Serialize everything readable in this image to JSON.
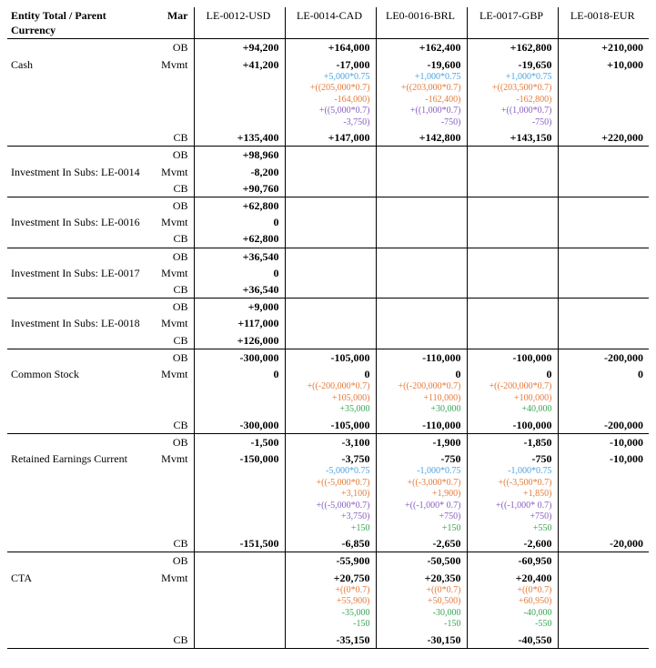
{
  "header": {
    "title": "Entity Total / Parent Currency",
    "subhead": "Mar",
    "columns": [
      "LE-0012-USD",
      "LE-0014-CAD",
      "LE0-0016-BRL",
      "LE-0017-GBP",
      "LE-0018-EUR"
    ]
  },
  "colors": {
    "blue": "#4aa3df",
    "orange": "#e57b3a",
    "purple": "#8a5fc0",
    "green": "#3aa655"
  },
  "groups": [
    {
      "label": "Cash",
      "rows": [
        {
          "sub": "OB",
          "cells": [
            {
              "main": "+94,200"
            },
            {
              "main": "+164,000"
            },
            {
              "main": "+162,400"
            },
            {
              "main": "+162,800"
            },
            {
              "main": "+210,000"
            }
          ]
        },
        {
          "sub": "Mvmt",
          "cells": [
            {
              "main": "+41,200"
            },
            {
              "main": "-17,000",
              "calcs": [
                {
                  "cls": "c-blue",
                  "txt": "+5,000*0.75"
                },
                {
                  "cls": "c-orange",
                  "txt": "+((205,000*0.7)"
                },
                {
                  "cls": "c-orange",
                  "txt": "-164,000)"
                },
                {
                  "cls": "c-purple",
                  "txt": "+((5,000*0.7)"
                },
                {
                  "cls": "c-purple",
                  "txt": "-3,750)"
                }
              ]
            },
            {
              "main": "-19,600",
              "calcs": [
                {
                  "cls": "c-blue",
                  "txt": "+1,000*0.75"
                },
                {
                  "cls": "c-orange",
                  "txt": "+((203,000*0.7)"
                },
                {
                  "cls": "c-orange",
                  "txt": "-162,400)"
                },
                {
                  "cls": "c-purple",
                  "txt": "+((1,000*0.7)"
                },
                {
                  "cls": "c-purple",
                  "txt": "-750)"
                }
              ]
            },
            {
              "main": "-19,650",
              "calcs": [
                {
                  "cls": "c-blue",
                  "txt": "+1,000*0.75"
                },
                {
                  "cls": "c-orange",
                  "txt": "+((203,500*0.7)"
                },
                {
                  "cls": "c-orange",
                  "txt": "-162,800)"
                },
                {
                  "cls": "c-purple",
                  "txt": "+((1,000*0.7)"
                },
                {
                  "cls": "c-purple",
                  "txt": "-750)"
                }
              ]
            },
            {
              "main": "+10,000"
            }
          ]
        },
        {
          "sub": "CB",
          "cells": [
            {
              "main": "+135,400"
            },
            {
              "main": "+147,000"
            },
            {
              "main": "+142,800"
            },
            {
              "main": "+143,150"
            },
            {
              "main": "+220,000"
            }
          ]
        }
      ]
    },
    {
      "label": "Investment In Subs: LE-0014",
      "rows": [
        {
          "sub": "OB",
          "cells": [
            {
              "main": "+98,960"
            },
            {
              "main": ""
            },
            {
              "main": ""
            },
            {
              "main": ""
            },
            {
              "main": ""
            }
          ]
        },
        {
          "sub": "Mvmt",
          "cells": [
            {
              "main": "-8,200"
            },
            {
              "main": ""
            },
            {
              "main": ""
            },
            {
              "main": ""
            },
            {
              "main": ""
            }
          ]
        },
        {
          "sub": "CB",
          "cells": [
            {
              "main": "+90,760"
            },
            {
              "main": ""
            },
            {
              "main": ""
            },
            {
              "main": ""
            },
            {
              "main": ""
            }
          ]
        }
      ]
    },
    {
      "label": "Investment In Subs: LE-0016",
      "rows": [
        {
          "sub": "OB",
          "cells": [
            {
              "main": "+62,800"
            },
            {
              "main": ""
            },
            {
              "main": ""
            },
            {
              "main": ""
            },
            {
              "main": ""
            }
          ]
        },
        {
          "sub": "Mvmt",
          "cells": [
            {
              "main": "0"
            },
            {
              "main": ""
            },
            {
              "main": ""
            },
            {
              "main": ""
            },
            {
              "main": ""
            }
          ]
        },
        {
          "sub": "CB",
          "cells": [
            {
              "main": "+62,800"
            },
            {
              "main": ""
            },
            {
              "main": ""
            },
            {
              "main": ""
            },
            {
              "main": ""
            }
          ]
        }
      ]
    },
    {
      "label": "Investment In Subs: LE-0017",
      "rows": [
        {
          "sub": "OB",
          "cells": [
            {
              "main": "+36,540"
            },
            {
              "main": ""
            },
            {
              "main": ""
            },
            {
              "main": ""
            },
            {
              "main": ""
            }
          ]
        },
        {
          "sub": "Mvmt",
          "cells": [
            {
              "main": "0"
            },
            {
              "main": ""
            },
            {
              "main": ""
            },
            {
              "main": ""
            },
            {
              "main": ""
            }
          ]
        },
        {
          "sub": "CB",
          "cells": [
            {
              "main": "+36,540"
            },
            {
              "main": ""
            },
            {
              "main": ""
            },
            {
              "main": ""
            },
            {
              "main": ""
            }
          ]
        }
      ]
    },
    {
      "label": "Investment In Subs: LE-0018",
      "rows": [
        {
          "sub": "OB",
          "cells": [
            {
              "main": "+9,000"
            },
            {
              "main": ""
            },
            {
              "main": ""
            },
            {
              "main": ""
            },
            {
              "main": ""
            }
          ]
        },
        {
          "sub": "Mvmt",
          "cells": [
            {
              "main": "+117,000"
            },
            {
              "main": ""
            },
            {
              "main": ""
            },
            {
              "main": ""
            },
            {
              "main": ""
            }
          ]
        },
        {
          "sub": "CB",
          "cells": [
            {
              "main": "+126,000"
            },
            {
              "main": ""
            },
            {
              "main": ""
            },
            {
              "main": ""
            },
            {
              "main": ""
            }
          ]
        }
      ]
    },
    {
      "label": "Common Stock",
      "rows": [
        {
          "sub": "OB",
          "cells": [
            {
              "main": "-300,000"
            },
            {
              "main": "-105,000"
            },
            {
              "main": "-110,000"
            },
            {
              "main": "-100,000"
            },
            {
              "main": "-200,000"
            }
          ]
        },
        {
          "sub": "Mvmt",
          "cells": [
            {
              "main": "0"
            },
            {
              "main": "0",
              "calcs": [
                {
                  "cls": "c-orange",
                  "txt": "+((-200,000*0.7)"
                },
                {
                  "cls": "c-orange",
                  "txt": "+105,000)"
                },
                {
                  "cls": "c-green",
                  "txt": "+35,000"
                }
              ]
            },
            {
              "main": "0",
              "calcs": [
                {
                  "cls": "c-orange",
                  "txt": "+((-200,000*0.7)"
                },
                {
                  "cls": "c-orange",
                  "txt": "+110,000)"
                },
                {
                  "cls": "c-green",
                  "txt": "+30,000"
                }
              ]
            },
            {
              "main": "0",
              "calcs": [
                {
                  "cls": "c-orange",
                  "txt": "+((-200,000*0.7)"
                },
                {
                  "cls": "c-orange",
                  "txt": "+100,000)"
                },
                {
                  "cls": "c-green",
                  "txt": "+40,000"
                }
              ]
            },
            {
              "main": "0"
            }
          ]
        },
        {
          "sub": "CB",
          "cells": [
            {
              "main": "-300,000"
            },
            {
              "main": "-105,000"
            },
            {
              "main": "-110,000"
            },
            {
              "main": "-100,000"
            },
            {
              "main": "-200,000"
            }
          ]
        }
      ]
    },
    {
      "label": "Retained Earnings Current",
      "rows": [
        {
          "sub": "OB",
          "cells": [
            {
              "main": "-1,500"
            },
            {
              "main": "-3,100"
            },
            {
              "main": "-1,900"
            },
            {
              "main": "-1,850"
            },
            {
              "main": "-10,000"
            }
          ]
        },
        {
          "sub": "Mvmt",
          "cells": [
            {
              "main": "-150,000"
            },
            {
              "main": "-3,750",
              "calcs": [
                {
                  "cls": "c-blue",
                  "txt": "-5,000*0.75"
                },
                {
                  "cls": "c-orange",
                  "txt": "+((-5,000*0.7)"
                },
                {
                  "cls": "c-orange",
                  "txt": "+3,100)"
                },
                {
                  "cls": "c-purple",
                  "txt": "+((-5,000*0.7)"
                },
                {
                  "cls": "c-purple",
                  "txt": "+3,750)"
                },
                {
                  "cls": "c-green",
                  "txt": "+150"
                }
              ]
            },
            {
              "main": "-750",
              "calcs": [
                {
                  "cls": "c-blue",
                  "txt": "-1,000*0.75"
                },
                {
                  "cls": "c-orange",
                  "txt": "+((-3,000*0.7)"
                },
                {
                  "cls": "c-orange",
                  "txt": "+1,900)"
                },
                {
                  "cls": "c-purple",
                  "txt": "+((-1,000* 0.7)"
                },
                {
                  "cls": "c-purple",
                  "txt": "+750)"
                },
                {
                  "cls": "c-green",
                  "txt": "+150"
                }
              ]
            },
            {
              "main": "-750",
              "calcs": [
                {
                  "cls": "c-blue",
                  "txt": "-1,000*0.75"
                },
                {
                  "cls": "c-orange",
                  "txt": "+((-3,500*0.7)"
                },
                {
                  "cls": "c-orange",
                  "txt": "+1,850)"
                },
                {
                  "cls": "c-purple",
                  "txt": "+((-1,000* 0.7)"
                },
                {
                  "cls": "c-purple",
                  "txt": "+750)"
                },
                {
                  "cls": "c-green",
                  "txt": "+550"
                }
              ]
            },
            {
              "main": "-10,000"
            }
          ]
        },
        {
          "sub": "CB",
          "cells": [
            {
              "main": "-151,500"
            },
            {
              "main": "-6,850"
            },
            {
              "main": "-2,650"
            },
            {
              "main": "-2,600"
            },
            {
              "main": "-20,000"
            }
          ]
        }
      ]
    },
    {
      "label": "CTA",
      "rows": [
        {
          "sub": "OB",
          "cells": [
            {
              "main": ""
            },
            {
              "main": "-55,900"
            },
            {
              "main": "-50,500"
            },
            {
              "main": "-60,950"
            },
            {
              "main": ""
            }
          ]
        },
        {
          "sub": "Mvmt",
          "cells": [
            {
              "main": ""
            },
            {
              "main": "+20,750",
              "calcs": [
                {
                  "cls": "c-orange",
                  "txt": "+((0*0.7)"
                },
                {
                  "cls": "c-orange",
                  "txt": "+55,900)"
                },
                {
                  "cls": "c-green",
                  "txt": "-35,000"
                },
                {
                  "cls": "c-green",
                  "txt": "-150"
                }
              ]
            },
            {
              "main": "+20,350",
              "calcs": [
                {
                  "cls": "c-orange",
                  "txt": "+((0*0.7)"
                },
                {
                  "cls": "c-orange",
                  "txt": "+50,500)"
                },
                {
                  "cls": "c-green",
                  "txt": "-30,000"
                },
                {
                  "cls": "c-green",
                  "txt": "-150"
                }
              ]
            },
            {
              "main": "+20,400",
              "calcs": [
                {
                  "cls": "c-orange",
                  "txt": "+((0*0.7)"
                },
                {
                  "cls": "c-orange",
                  "txt": "+60,950)"
                },
                {
                  "cls": "c-green",
                  "txt": "-40,000"
                },
                {
                  "cls": "c-green",
                  "txt": "-550"
                }
              ]
            },
            {
              "main": ""
            }
          ]
        },
        {
          "sub": "CB",
          "cells": [
            {
              "main": ""
            },
            {
              "main": "-35,150"
            },
            {
              "main": "-30,150"
            },
            {
              "main": "-40,550"
            },
            {
              "main": ""
            }
          ]
        }
      ]
    }
  ]
}
